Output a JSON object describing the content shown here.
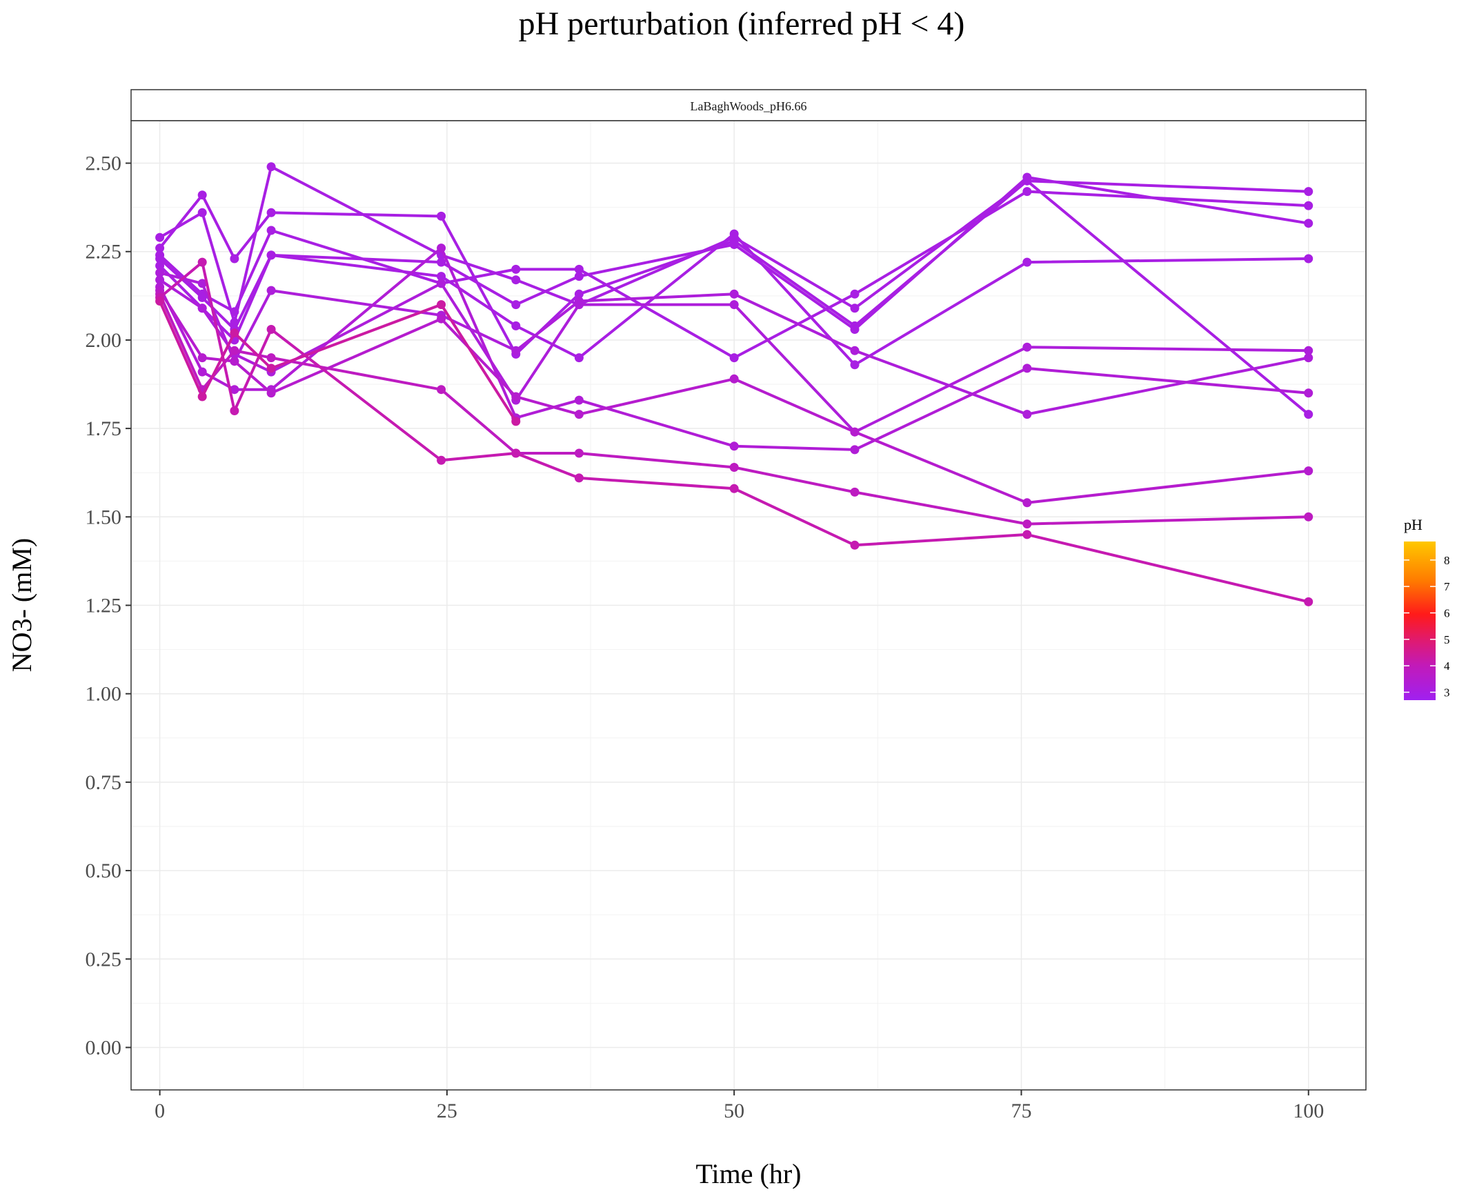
{
  "chart_data": {
    "type": "line",
    "title": "pH perturbation (inferred pH < 4)",
    "facet_label": "LaBaghWoods_pH6.66",
    "xlabel": "Time (hr)",
    "ylabel": "NO3- (mM)",
    "xlim": [
      -2.5,
      105
    ],
    "ylim": [
      -0.12,
      2.62
    ],
    "x_ticks": [
      0,
      25,
      50,
      75,
      100
    ],
    "x_tick_labels": [
      "0",
      "25",
      "50",
      "75",
      "100"
    ],
    "y_ticks": [
      0,
      0.25,
      0.5,
      0.75,
      1.0,
      1.25,
      1.5,
      1.75,
      2.0,
      2.25,
      2.5
    ],
    "y_tick_labels": [
      "0.00",
      "0.25",
      "0.50",
      "0.75",
      "1.00",
      "1.25",
      "1.50",
      "1.75",
      "2.00",
      "2.25",
      "2.50"
    ],
    "grid": true,
    "legend": {
      "title": "pH",
      "placement": "right",
      "range": [
        2.7,
        8.7
      ],
      "ticks": [
        3,
        4,
        5,
        6,
        7,
        8
      ],
      "tick_labels": [
        "3",
        "4",
        "5",
        "6",
        "7",
        "8"
      ],
      "colors": [
        "#a020f0",
        "#c21ab8",
        "#e01a6e",
        "#ff1a1a",
        "#ff7a00",
        "#ffc800"
      ]
    },
    "series": [
      {
        "ph": 3.0,
        "x": [
          0,
          3.7,
          6.5,
          9.7,
          24.5,
          31,
          36.5,
          50,
          60.5,
          75.5,
          100
        ],
        "y": [
          2.29,
          2.36,
          2.05,
          2.49,
          2.24,
          2.17,
          2.1,
          2.29,
          2.09,
          2.45,
          1.79
        ]
      },
      {
        "ph": 3.0,
        "x": [
          0,
          3.7,
          6.5,
          9.7,
          24.5,
          31,
          36.5,
          50,
          60.5,
          75.5,
          100
        ],
        "y": [
          2.26,
          2.41,
          2.23,
          2.36,
          2.35,
          1.96,
          2.13,
          2.28,
          2.04,
          2.45,
          2.42
        ]
      },
      {
        "ph": 3.0,
        "x": [
          0,
          3.7,
          6.5,
          9.7,
          24.5,
          31,
          36.5,
          50,
          60.5,
          75.5,
          100
        ],
        "y": [
          2.24,
          2.13,
          2.08,
          2.31,
          2.16,
          2.2,
          2.2,
          1.95,
          2.13,
          2.42,
          2.38
        ]
      },
      {
        "ph": 3.0,
        "x": [
          0,
          3.7,
          6.5,
          9.7,
          24.5,
          31,
          36.5,
          50,
          60.5,
          75.5,
          100
        ],
        "y": [
          2.23,
          2.12,
          2.03,
          2.24,
          2.22,
          2.1,
          2.18,
          2.27,
          2.03,
          2.46,
          2.33
        ]
      },
      {
        "ph": 3.0,
        "x": [
          0,
          3.7,
          6.5,
          9.7,
          24.5,
          31,
          36.5,
          50,
          60.5,
          75.5,
          100
        ],
        "y": [
          2.21,
          2.09,
          2.0,
          2.24,
          2.18,
          2.04,
          1.95,
          2.3,
          1.93,
          2.22,
          2.23
        ]
      },
      {
        "ph": 3.2,
        "x": [
          0,
          3.7,
          6.5,
          9.7,
          24.5,
          31,
          36.5,
          50,
          60.5,
          75.5,
          100
        ],
        "y": [
          2.19,
          2.16,
          1.94,
          2.14,
          2.07,
          1.97,
          2.11,
          2.13,
          1.97,
          1.79,
          1.95
        ]
      },
      {
        "ph": 3.2,
        "x": [
          0,
          3.7,
          6.5,
          9.7,
          24.5,
          31,
          36.5,
          50,
          60.5,
          75.5,
          100
        ],
        "y": [
          2.17,
          2.09,
          1.96,
          1.91,
          2.16,
          1.83,
          2.1,
          2.1,
          1.74,
          1.98,
          1.97
        ]
      },
      {
        "ph": 3.3,
        "x": [
          0,
          3.7,
          6.5,
          9.7,
          24.5,
          31,
          36.5,
          50,
          60.5,
          75.5,
          100
        ],
        "y": [
          2.15,
          1.91,
          1.86,
          1.86,
          2.26,
          1.78,
          1.83,
          1.7,
          1.69,
          1.92,
          1.85
        ]
      },
      {
        "ph": 3.5,
        "x": [
          0,
          3.7,
          6.5,
          9.7,
          24.5,
          31,
          36.5,
          50,
          60.5,
          75.5,
          100
        ],
        "y": [
          2.14,
          1.95,
          1.94,
          1.85,
          2.06,
          1.84,
          1.79,
          1.89,
          1.74,
          1.54,
          1.63
        ]
      },
      {
        "ph": 3.8,
        "x": [
          0,
          3.7,
          6.5,
          9.7,
          24.5,
          31,
          36.5,
          50,
          60.5,
          75.5,
          100
        ],
        "y": [
          2.13,
          1.86,
          1.97,
          1.95,
          1.86,
          1.68,
          1.68,
          1.64,
          1.57,
          1.48,
          1.5
        ]
      },
      {
        "ph": 4.1,
        "x": [
          0,
          3.7,
          6.5,
          9.7,
          24.5,
          31,
          36.5,
          50,
          60.5,
          75.5,
          100
        ],
        "y": [
          2.12,
          2.22,
          1.8,
          2.03,
          1.66,
          1.68,
          1.61,
          1.58,
          1.42,
          1.45,
          1.26
        ]
      },
      {
        "ph": 4.3,
        "x": [
          0,
          3.7,
          6.5,
          9.7,
          24.5,
          31
        ],
        "y": [
          2.11,
          1.84,
          2.02,
          1.92,
          2.1,
          1.77
        ]
      }
    ]
  }
}
